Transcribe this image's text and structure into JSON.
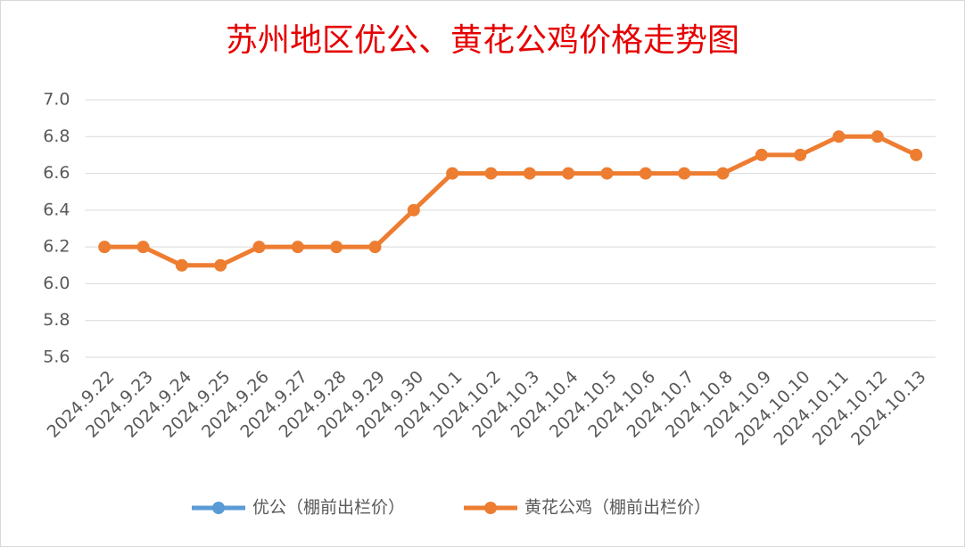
{
  "chart_data": {
    "type": "line",
    "title": "苏州地区优公、黄花公鸡价格走势图",
    "categories": [
      "2024.9.22",
      "2024.9.23",
      "2024.9.24",
      "2024.9.25",
      "2024.9.26",
      "2024.9.27",
      "2024.9.28",
      "2024.9.29",
      "2024.9.30",
      "2024.10.1",
      "2024.10.2",
      "2024.10.3",
      "2024.10.4",
      "2024.10.5",
      "2024.10.6",
      "2024.10.7",
      "2024.10.8",
      "2024.10.9",
      "2024.10.10",
      "2024.10.11",
      "2024.10.12",
      "2024.10.13"
    ],
    "series": [
      {
        "name": "优公（棚前出栏价）",
        "color": "#5b9bd5",
        "values": [
          null,
          null,
          null,
          null,
          null,
          null,
          null,
          null,
          null,
          null,
          null,
          null,
          null,
          null,
          null,
          null,
          null,
          null,
          null,
          null,
          null,
          null
        ]
      },
      {
        "name": "黄花公鸡（棚前出栏价）",
        "color": "#ed7d31",
        "values": [
          6.2,
          6.2,
          6.1,
          6.1,
          6.2,
          6.2,
          6.2,
          6.2,
          6.4,
          6.6,
          6.6,
          6.6,
          6.6,
          6.6,
          6.6,
          6.6,
          6.6,
          6.7,
          6.7,
          6.8,
          6.8,
          6.7
        ]
      }
    ],
    "ylim": [
      5.6,
      7.0
    ],
    "yticks": [
      5.6,
      5.8,
      {
        "value": 6,
        "label": "6.0"
      },
      6.2,
      6.4,
      6.6,
      6.8,
      {
        "value": 7,
        "label": "7.0"
      }
    ],
    "grid": true,
    "legend": "bottom"
  }
}
